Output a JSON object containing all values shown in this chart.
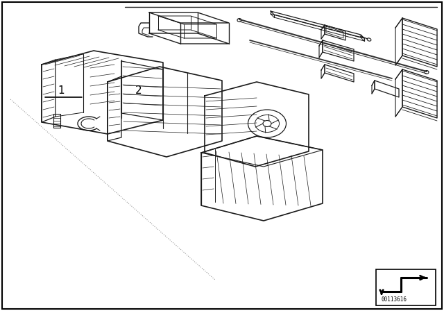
{
  "background_color": "#ffffff",
  "border_color": "#000000",
  "image_id": "00113616",
  "label1": "1",
  "label2": "2",
  "fig_width": 6.4,
  "fig_height": 4.48,
  "dpi": 100,
  "parts_color": "#1a1a1a",
  "dot_line_color": "#888888"
}
